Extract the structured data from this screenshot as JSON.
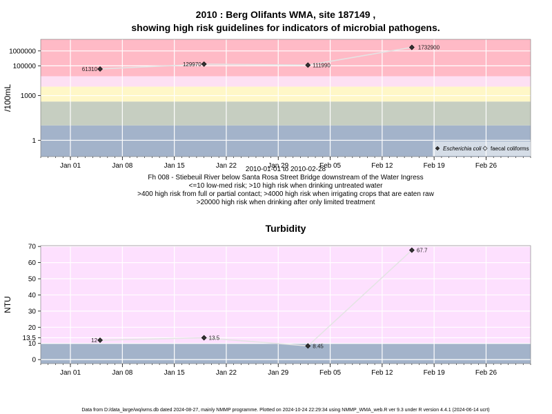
{
  "footer": "Data from D:/data_large/wq/wms.db dated 2024-08-27, mainly NMMP programme. Plotted on 2024-10-24 22:29:34 using NMMP_WMA_web.R ver 9.3 under R version 4.4.1 (2024-06-14 ucrt)",
  "chart_data": [
    {
      "type": "line",
      "title_line1": "2010 : Berg Olifants WMA, site 187149 ,",
      "title_line2": "showing high risk guidelines for indicators of microbial pathogens.",
      "ylabel": "/100mL",
      "yscale": "log10",
      "yticks": [
        1,
        1000,
        100000,
        1000000
      ],
      "ytick_labels": [
        "1",
        "1000",
        "100000",
        "1000000"
      ],
      "ylim": [
        0.08,
        6000000
      ],
      "xlim": [
        "2009-12-28",
        "2010-03-04"
      ],
      "xticks": [
        "2010-01-01",
        "2010-01-08",
        "2010-01-15",
        "2010-01-22",
        "2010-01-29",
        "2010-02-05",
        "2010-02-12",
        "2010-02-19",
        "2010-02-26"
      ],
      "xtick_labels": [
        "Jan 01",
        "Jan 08",
        "Jan 15",
        "Jan 22",
        "Jan 29",
        "Feb 05",
        "Feb 12",
        "Feb 19",
        "Feb 26"
      ],
      "date_range_label": "2010-01-01 to 2010-02-28",
      "site_label": "Fh 008 - Stiebeuil River below Santa Rosa Street Bridge downstream of the Water Ingress",
      "guideline_notes": [
        "<=10 low-med risk; >10 high risk when drinking untreated water",
        ">400 high risk from full or partial contact; >4000 high risk when irrigating crops that are eaten raw",
        ">20000 high risk when drinking after only limited treatment"
      ],
      "bands": [
        {
          "from": 0.08,
          "to": 10,
          "color": "#a3b3ca"
        },
        {
          "from": 10,
          "to": 400,
          "color": "#c6cec1"
        },
        {
          "from": 400,
          "to": 4000,
          "color": "#fff7c7"
        },
        {
          "from": 4000,
          "to": 20000,
          "color": "#fde0f3"
        },
        {
          "from": 20000,
          "to": 6000000,
          "color": "#ffbac6"
        }
      ],
      "series": [
        {
          "name": "Escherichia coli",
          "x": [
            "2010-01-05",
            "2010-01-19",
            "2010-02-02",
            "2010-02-16"
          ],
          "y": [
            61310,
            129970,
            111990,
            1732900
          ],
          "labels": [
            "61310",
            "129970",
            "111990",
            "1732900"
          ],
          "marker": "filled-diamond"
        },
        {
          "name": "faecal coliforms",
          "x": [],
          "y": [],
          "labels": [],
          "marker": "open-diamond"
        }
      ],
      "legend_position": "bottom-right",
      "grid": true
    },
    {
      "type": "line",
      "title": "Turbidity",
      "ylabel": "NTU",
      "yscale": "linear",
      "yticks": [
        0,
        10,
        13.5,
        20,
        30,
        40,
        50,
        60,
        70
      ],
      "ytick_labels": [
        "0",
        "10",
        "13.5",
        "20",
        "30",
        "40",
        "50",
        "60",
        "70"
      ],
      "ylim": [
        -2.5,
        70.5
      ],
      "xlim": [
        "2009-12-28",
        "2010-03-04"
      ],
      "xticks": [
        "2010-01-01",
        "2010-01-08",
        "2010-01-15",
        "2010-01-22",
        "2010-01-29",
        "2010-02-05",
        "2010-02-12",
        "2010-02-19",
        "2010-02-26"
      ],
      "xtick_labels": [
        "Jan 01",
        "Jan 08",
        "Jan 15",
        "Jan 22",
        "Jan 29",
        "Feb 05",
        "Feb 12",
        "Feb 19",
        "Feb 26"
      ],
      "bands": [
        {
          "from": -2.5,
          "to": 10,
          "color": "#a3b3ca"
        },
        {
          "from": 10,
          "to": 70.5,
          "color": "#fde0fe"
        }
      ],
      "series": [
        {
          "x": [
            "2010-01-05",
            "2010-01-19",
            "2010-02-02",
            "2010-02-16"
          ],
          "y": [
            12,
            13.5,
            8.45,
            67.7
          ],
          "labels": [
            "12",
            "13.5",
            "8.45",
            "67.7"
          ],
          "marker": "filled-diamond"
        }
      ],
      "grid": true
    }
  ]
}
